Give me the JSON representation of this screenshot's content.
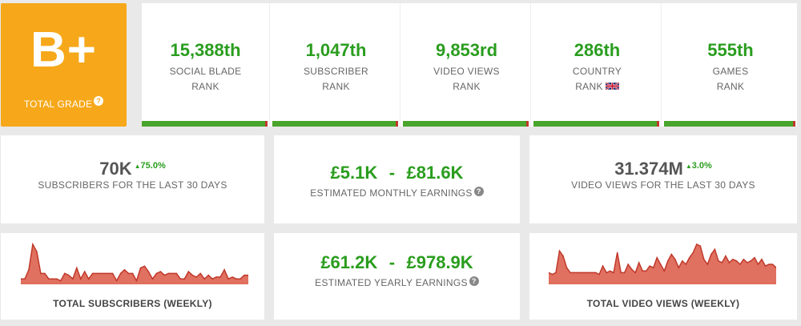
{
  "grade": {
    "letter": "B+",
    "label": "TOTAL GRADE",
    "help_icon": "?"
  },
  "ranks": [
    {
      "value": "15,388th",
      "line1": "SOCIAL BLADE",
      "line2": "RANK",
      "fill": 0.99
    },
    {
      "value": "1,047th",
      "line1": "SUBSCRIBER",
      "line2": "RANK",
      "fill": 0.99
    },
    {
      "value": "9,853rd",
      "line1": "VIDEO VIEWS",
      "line2": "RANK",
      "fill": 0.99
    },
    {
      "value": "286th",
      "line1": "COUNTRY",
      "line2": "RANK",
      "flag": "uk-flag-icon",
      "fill": 0.99
    },
    {
      "value": "555th",
      "line1": "GAMES",
      "line2": "RANK",
      "fill": 0.99
    }
  ],
  "stats": {
    "subscribers": {
      "value": "70K",
      "change": "75.0%",
      "label": "SUBSCRIBERS FOR THE LAST 30 DAYS"
    },
    "monthly": {
      "low": "£5.1K",
      "sep": "-",
      "high": "£81.6K",
      "label": "ESTIMATED MONTHLY EARNINGS"
    },
    "views": {
      "value": "31.374M",
      "change": "3.0%",
      "label": "VIDEO VIEWS FOR THE LAST 30 DAYS"
    },
    "yearly": {
      "low": "£61.2K",
      "sep": "-",
      "high": "£978.9K",
      "label": "ESTIMATED YEARLY EARNINGS"
    }
  },
  "charts": {
    "subscribers_label": "TOTAL SUBSCRIBERS (WEEKLY)",
    "views_label": "TOTAL VIDEO VIEWS (WEEKLY)"
  },
  "colors": {
    "green": "#2a9d1e",
    "orange": "#f6a81a",
    "chart_fill": "#e0705f",
    "chart_line": "#c0392b"
  },
  "chart_data": [
    {
      "type": "area",
      "title": "TOTAL SUBSCRIBERS (WEEKLY)",
      "values": [
        3,
        3,
        8,
        22,
        18,
        6,
        6,
        3,
        3,
        3,
        2,
        6,
        5,
        3,
        9,
        3,
        7,
        3,
        6,
        6,
        6,
        6,
        6,
        6,
        2,
        6,
        8,
        6,
        6,
        2,
        9,
        10,
        7,
        3,
        6,
        7,
        5,
        6,
        6,
        6,
        3,
        3,
        7,
        5,
        4,
        6,
        3,
        5,
        3,
        4,
        4,
        8,
        3,
        4,
        3,
        3,
        5,
        5
      ]
    },
    {
      "type": "area",
      "title": "TOTAL VIDEO VIEWS (WEEKLY)",
      "values": [
        7,
        6,
        7,
        20,
        17,
        10,
        7,
        7,
        7,
        7,
        7,
        7,
        7,
        7,
        6,
        11,
        7,
        8,
        7,
        19,
        7,
        7,
        12,
        9,
        7,
        13,
        8,
        8,
        11,
        10,
        16,
        12,
        8,
        14,
        18,
        15,
        10,
        14,
        12,
        16,
        19,
        24,
        23,
        15,
        12,
        18,
        21,
        14,
        13,
        17,
        13,
        15,
        14,
        12,
        15,
        13,
        14,
        16,
        12,
        15,
        11,
        12,
        12,
        10
      ]
    }
  ]
}
